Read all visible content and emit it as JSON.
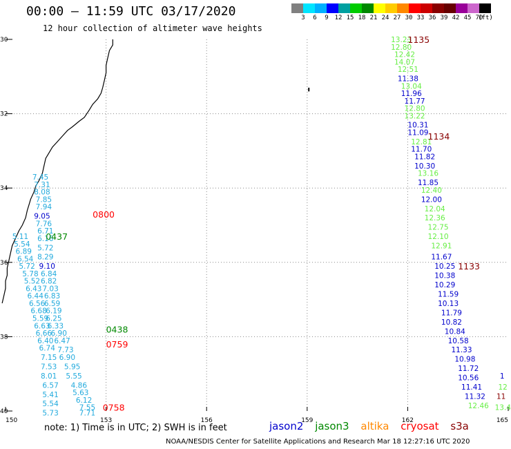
{
  "header": {
    "title": "00:00 – 11:59 UTC 03/17/2020",
    "subtitle": "12 hour collection of altimeter wave heights"
  },
  "colorbar": {
    "colors": [
      "#808080",
      "#00e5ff",
      "#00b0ff",
      "#0000ff",
      "#00a0a0",
      "#00cc00",
      "#008800",
      "#ffff00",
      "#ffcc00",
      "#ff8800",
      "#ff0000",
      "#cc0000",
      "#880000",
      "#660000",
      "#990099",
      "#cc66cc",
      "#000000"
    ],
    "labels": [
      "3",
      "6",
      "9",
      "12",
      "15",
      "18",
      "21",
      "24",
      "27",
      "30",
      "33",
      "36",
      "39",
      "42",
      "45",
      "70",
      "(ft)"
    ]
  },
  "axes": {
    "lat_labels": [
      "30",
      "32",
      "34",
      "36",
      "38",
      "40"
    ],
    "lon_labels": [
      "150",
      "153",
      "156",
      "159",
      "162",
      "165"
    ]
  },
  "satellite_colors": {
    "jason2": "#0000cc",
    "jason3": "#008800",
    "altika": "#ff8800",
    "cryosat": "#ff0000",
    "s3a": "#880000",
    "light": "#66ee44",
    "cyan": "#22aadd"
  },
  "tracks": [
    {
      "time": "1135",
      "satellite": "s3a",
      "time_pos": {
        "lon": 162.0,
        "lat": 30.0
      }
    },
    {
      "time": "1134",
      "satellite": "s3a",
      "time_pos": {
        "lon": 162.6,
        "lat": 32.6
      }
    },
    {
      "time": "1133",
      "satellite": "s3a",
      "time_pos": {
        "lon": 163.5,
        "lat": 36.1
      }
    },
    {
      "time": "0800",
      "satellite": "cryosat",
      "time_pos": {
        "lon": 152.6,
        "lat": 34.7
      }
    },
    {
      "time": "0437",
      "satellite": "jason3",
      "time_pos": {
        "lon": 151.2,
        "lat": 35.3
      }
    },
    {
      "time": "0438",
      "satellite": "jason3",
      "time_pos": {
        "lon": 153.0,
        "lat": 37.8
      }
    },
    {
      "time": "0759",
      "satellite": "cryosat",
      "time_pos": {
        "lon": 153.0,
        "lat": 38.2
      }
    },
    {
      "time": "0758",
      "satellite": "cryosat",
      "time_pos": {
        "lon": 152.9,
        "lat": 39.9
      }
    }
  ],
  "wave_heights": [
    {
      "v": "13.23",
      "c": "light",
      "lon": 161.5,
      "lat": 30.0
    },
    {
      "v": "12.80",
      "c": "light",
      "lon": 161.5,
      "lat": 30.2
    },
    {
      "v": "12.42",
      "c": "light",
      "lon": 161.6,
      "lat": 30.4
    },
    {
      "v": "14.07",
      "c": "light",
      "lon": 161.6,
      "lat": 30.6
    },
    {
      "v": "12.51",
      "c": "light",
      "lon": 161.7,
      "lat": 30.8
    },
    {
      "v": "11.38",
      "c": "jason2",
      "lon": 161.7,
      "lat": 31.05
    },
    {
      "v": "13.04",
      "c": "light",
      "lon": 161.8,
      "lat": 31.25
    },
    {
      "v": "11.96",
      "c": "jason2",
      "lon": 161.8,
      "lat": 31.45
    },
    {
      "v": "11.77",
      "c": "jason2",
      "lon": 161.9,
      "lat": 31.65
    },
    {
      "v": "12.80",
      "c": "light",
      "lon": 161.9,
      "lat": 31.85
    },
    {
      "v": "13.22",
      "c": "light",
      "lon": 161.9,
      "lat": 32.05
    },
    {
      "v": "10.31",
      "c": "jason2",
      "lon": 162.0,
      "lat": 32.3
    },
    {
      "v": "11.09",
      "c": "jason2",
      "lon": 162.0,
      "lat": 32.5
    },
    {
      "v": "12.81",
      "c": "light",
      "lon": 162.1,
      "lat": 32.75
    },
    {
      "v": "11.70",
      "c": "jason2",
      "lon": 162.1,
      "lat": 32.95
    },
    {
      "v": "11.82",
      "c": "jason2",
      "lon": 162.2,
      "lat": 33.15
    },
    {
      "v": "10.30",
      "c": "jason2",
      "lon": 162.2,
      "lat": 33.4
    },
    {
      "v": "13.16",
      "c": "light",
      "lon": 162.3,
      "lat": 33.6
    },
    {
      "v": "11.85",
      "c": "jason2",
      "lon": 162.3,
      "lat": 33.85
    },
    {
      "v": "12.40",
      "c": "light",
      "lon": 162.4,
      "lat": 34.05
    },
    {
      "v": "12.00",
      "c": "jason2",
      "lon": 162.4,
      "lat": 34.3
    },
    {
      "v": "12.04",
      "c": "light",
      "lon": 162.5,
      "lat": 34.55
    },
    {
      "v": "12.36",
      "c": "light",
      "lon": 162.5,
      "lat": 34.8
    },
    {
      "v": "12.75",
      "c": "light",
      "lon": 162.6,
      "lat": 35.05
    },
    {
      "v": "12.10",
      "c": "light",
      "lon": 162.6,
      "lat": 35.3
    },
    {
      "v": "12.91",
      "c": "light",
      "lon": 162.7,
      "lat": 35.55
    },
    {
      "v": "11.67",
      "c": "jason2",
      "lon": 162.7,
      "lat": 35.85
    },
    {
      "v": "10.25",
      "c": "jason2",
      "lon": 162.8,
      "lat": 36.1
    },
    {
      "v": "10.38",
      "c": "jason2",
      "lon": 162.8,
      "lat": 36.35
    },
    {
      "v": "10.29",
      "c": "jason2",
      "lon": 162.8,
      "lat": 36.6
    },
    {
      "v": "11.59",
      "c": "jason2",
      "lon": 162.9,
      "lat": 36.85
    },
    {
      "v": "10.13",
      "c": "jason2",
      "lon": 162.9,
      "lat": 37.1
    },
    {
      "v": "11.79",
      "c": "jason2",
      "lon": 163.0,
      "lat": 37.35
    },
    {
      "v": "10.82",
      "c": "jason2",
      "lon": 163.0,
      "lat": 37.6
    },
    {
      "v": "10.84",
      "c": "jason2",
      "lon": 163.1,
      "lat": 37.85
    },
    {
      "v": "10.58",
      "c": "jason2",
      "lon": 163.2,
      "lat": 38.1
    },
    {
      "v": "11.33",
      "c": "jason2",
      "lon": 163.3,
      "lat": 38.35
    },
    {
      "v": "10.98",
      "c": "jason2",
      "lon": 163.4,
      "lat": 38.6
    },
    {
      "v": "11.72",
      "c": "jason2",
      "lon": 163.5,
      "lat": 38.85
    },
    {
      "v": "10.56",
      "c": "jason2",
      "lon": 163.5,
      "lat": 39.1
    },
    {
      "v": "11.41",
      "c": "jason2",
      "lon": 163.6,
      "lat": 39.35
    },
    {
      "v": "11.32",
      "c": "jason2",
      "lon": 163.7,
      "lat": 39.6
    },
    {
      "v": "12.46",
      "c": "light",
      "lon": 163.8,
      "lat": 39.85
    },
    {
      "v": "1",
      "c": "jason2",
      "lon": 164.75,
      "lat": 39.05
    },
    {
      "v": "12",
      "c": "light",
      "lon": 164.7,
      "lat": 39.35
    },
    {
      "v": "11",
      "c": "s3a",
      "lon": 164.65,
      "lat": 39.6
    },
    {
      "v": "13.4",
      "c": "light",
      "lon": 164.6,
      "lat": 39.9
    },
    {
      "v": "7.45",
      "c": "cyan",
      "lon": 150.8,
      "lat": 33.7
    },
    {
      "v": "7.31",
      "c": "cyan",
      "lon": 150.85,
      "lat": 33.9
    },
    {
      "v": "8.08",
      "c": "cyan",
      "lon": 150.85,
      "lat": 34.1
    },
    {
      "v": "7.85",
      "c": "cyan",
      "lon": 150.9,
      "lat": 34.3
    },
    {
      "v": "7.94",
      "c": "cyan",
      "lon": 150.9,
      "lat": 34.5
    },
    {
      "v": "9.05",
      "c": "jason2",
      "lon": 150.85,
      "lat": 34.75
    },
    {
      "v": "7.76",
      "c": "cyan",
      "lon": 150.9,
      "lat": 34.95
    },
    {
      "v": "6.71",
      "c": "cyan",
      "lon": 150.95,
      "lat": 35.15
    },
    {
      "v": "6.16",
      "c": "cyan",
      "lon": 150.95,
      "lat": 35.35
    },
    {
      "v": "5.72",
      "c": "cyan",
      "lon": 150.95,
      "lat": 35.6
    },
    {
      "v": "8.29",
      "c": "cyan",
      "lon": 150.95,
      "lat": 35.85
    },
    {
      "v": "9.10",
      "c": "jason2",
      "lon": 151.0,
      "lat": 36.1
    },
    {
      "v": "6.84",
      "c": "cyan",
      "lon": 151.05,
      "lat": 36.3
    },
    {
      "v": "6.82",
      "c": "cyan",
      "lon": 151.05,
      "lat": 36.5
    },
    {
      "v": "7.03",
      "c": "cyan",
      "lon": 151.1,
      "lat": 36.7
    },
    {
      "v": "6.83",
      "c": "cyan",
      "lon": 151.15,
      "lat": 36.9
    },
    {
      "v": "6.59",
      "c": "cyan",
      "lon": 151.15,
      "lat": 37.1
    },
    {
      "v": "6.19",
      "c": "cyan",
      "lon": 151.2,
      "lat": 37.3
    },
    {
      "v": "6.25",
      "c": "cyan",
      "lon": 151.2,
      "lat": 37.5
    },
    {
      "v": "6.33",
      "c": "cyan",
      "lon": 151.25,
      "lat": 37.7
    },
    {
      "v": "6.90",
      "c": "cyan",
      "lon": 151.35,
      "lat": 37.9
    },
    {
      "v": "6.47",
      "c": "cyan",
      "lon": 151.45,
      "lat": 38.1
    },
    {
      "v": "7.73",
      "c": "cyan",
      "lon": 151.55,
      "lat": 38.35
    },
    {
      "v": "6.90",
      "c": "cyan",
      "lon": 151.6,
      "lat": 38.55
    },
    {
      "v": "5.95",
      "c": "cyan",
      "lon": 151.75,
      "lat": 38.8
    },
    {
      "v": "5.55",
      "c": "cyan",
      "lon": 151.8,
      "lat": 39.05
    },
    {
      "v": "4.86",
      "c": "cyan",
      "lon": 151.95,
      "lat": 39.3
    },
    {
      "v": "5.63",
      "c": "cyan",
      "lon": 152.0,
      "lat": 39.5
    },
    {
      "v": "6.12",
      "c": "cyan",
      "lon": 152.1,
      "lat": 39.7
    },
    {
      "v": "7.55",
      "c": "cyan",
      "lon": 152.2,
      "lat": 39.9
    },
    {
      "v": "7.71",
      "c": "cyan",
      "lon": 152.2,
      "lat": 40.05
    },
    {
      "v": "5.11",
      "c": "cyan",
      "lon": 150.2,
      "lat": 35.3
    },
    {
      "v": "5.54",
      "c": "cyan",
      "lon": 150.25,
      "lat": 35.5
    },
    {
      "v": "6.89",
      "c": "cyan",
      "lon": 150.3,
      "lat": 35.7
    },
    {
      "v": "6.54",
      "c": "cyan",
      "lon": 150.35,
      "lat": 35.9
    },
    {
      "v": "5.72",
      "c": "cyan",
      "lon": 150.4,
      "lat": 36.1
    },
    {
      "v": "5.78",
      "c": "cyan",
      "lon": 150.5,
      "lat": 36.3
    },
    {
      "v": "5.52",
      "c": "cyan",
      "lon": 150.55,
      "lat": 36.5
    },
    {
      "v": "6.43",
      "c": "cyan",
      "lon": 150.6,
      "lat": 36.7
    },
    {
      "v": "6.44",
      "c": "cyan",
      "lon": 150.65,
      "lat": 36.9
    },
    {
      "v": "6.56",
      "c": "cyan",
      "lon": 150.7,
      "lat": 37.1
    },
    {
      "v": "6.68",
      "c": "cyan",
      "lon": 150.75,
      "lat": 37.3
    },
    {
      "v": "5.59",
      "c": "cyan",
      "lon": 150.8,
      "lat": 37.5
    },
    {
      "v": "6.63",
      "c": "cyan",
      "lon": 150.85,
      "lat": 37.7
    },
    {
      "v": "6.66",
      "c": "cyan",
      "lon": 150.9,
      "lat": 37.9
    },
    {
      "v": "6.40",
      "c": "cyan",
      "lon": 150.95,
      "lat": 38.1
    },
    {
      "v": "6.74",
      "c": "cyan",
      "lon": 151.0,
      "lat": 38.3
    },
    {
      "v": "7.15",
      "c": "cyan",
      "lon": 151.05,
      "lat": 38.55
    },
    {
      "v": "7.53",
      "c": "cyan",
      "lon": 151.05,
      "lat": 38.8
    },
    {
      "v": "8.01",
      "c": "cyan",
      "lon": 151.05,
      "lat": 39.05
    },
    {
      "v": "6.57",
      "c": "cyan",
      "lon": 151.1,
      "lat": 39.3
    },
    {
      "v": "5.41",
      "c": "cyan",
      "lon": 151.1,
      "lat": 39.55
    },
    {
      "v": "5.54",
      "c": "cyan",
      "lon": 151.1,
      "lat": 39.8
    },
    {
      "v": "5.73",
      "c": "cyan",
      "lon": 151.1,
      "lat": 40.05
    }
  ],
  "coastline": [
    [
      153.2,
      30.0
    ],
    [
      153.2,
      30.15
    ],
    [
      153.1,
      30.3
    ],
    [
      153.05,
      30.5
    ],
    [
      153.0,
      30.7
    ],
    [
      153.0,
      30.9
    ],
    [
      152.95,
      31.1
    ],
    [
      152.9,
      31.3
    ],
    [
      152.85,
      31.45
    ],
    [
      152.75,
      31.6
    ],
    [
      152.6,
      31.75
    ],
    [
      152.5,
      31.9
    ],
    [
      152.35,
      32.1
    ],
    [
      152.2,
      32.2
    ],
    [
      152.0,
      32.35
    ],
    [
      151.85,
      32.45
    ],
    [
      151.7,
      32.6
    ],
    [
      151.55,
      32.75
    ],
    [
      151.4,
      32.9
    ],
    [
      151.3,
      33.05
    ],
    [
      151.2,
      33.2
    ],
    [
      151.15,
      33.4
    ],
    [
      151.1,
      33.6
    ],
    [
      151.0,
      33.8
    ],
    [
      150.9,
      33.95
    ],
    [
      150.85,
      34.1
    ],
    [
      150.75,
      34.3
    ],
    [
      150.7,
      34.45
    ],
    [
      150.65,
      34.6
    ],
    [
      150.6,
      34.8
    ],
    [
      150.5,
      35.0
    ],
    [
      150.4,
      35.15
    ],
    [
      150.3,
      35.35
    ],
    [
      150.2,
      35.55
    ],
    [
      150.15,
      35.75
    ],
    [
      150.1,
      35.95
    ],
    [
      150.05,
      36.15
    ],
    [
      150.05,
      36.35
    ],
    [
      150.0,
      36.5
    ],
    [
      150.0,
      36.7
    ],
    [
      149.95,
      36.9
    ],
    [
      149.9,
      37.1
    ]
  ],
  "annotations": {
    "note": "note:  1) Time is in UTC;  2) SWH is in feet",
    "legend": [
      "jason2",
      "jason3",
      "altika",
      "cryosat",
      "s3a"
    ],
    "credit": "NOAA/NESDIS Center for Satellite Applications and Research    Mar 18 12:27:16 UTC 2020"
  }
}
